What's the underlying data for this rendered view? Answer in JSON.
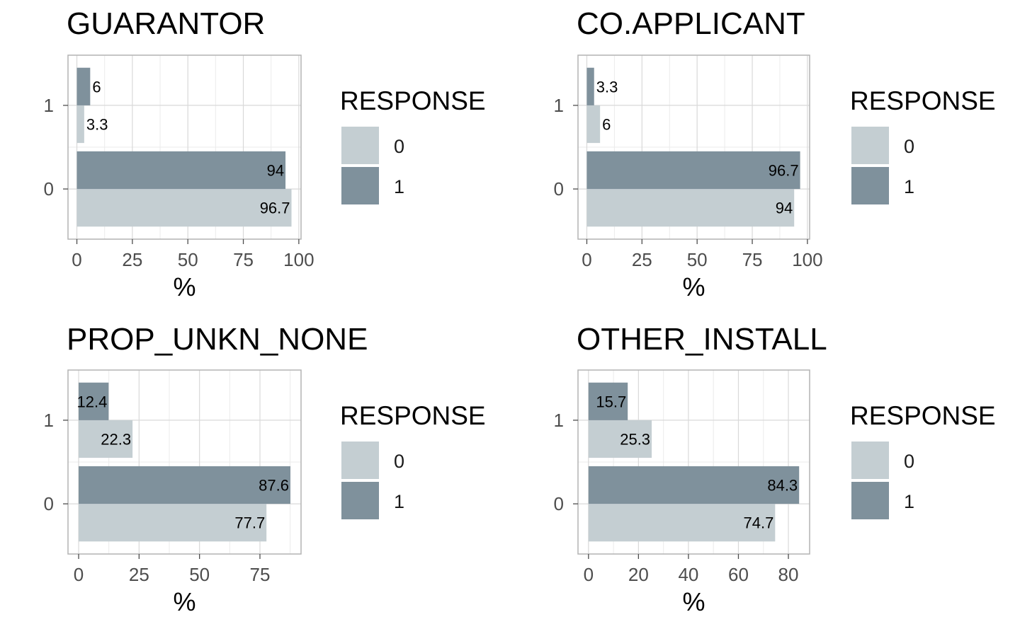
{
  "chart_data": [
    {
      "type": "bar",
      "orientation": "horizontal",
      "title": "GUARANTOR",
      "categories": [
        "0",
        "1"
      ],
      "series": [
        {
          "name": "0",
          "values": [
            96.7,
            3.3
          ]
        },
        {
          "name": "1",
          "values": [
            94,
            6
          ]
        }
      ],
      "value_labels": [
        [
          "96.7",
          "3.3"
        ],
        [
          "94",
          "6"
        ]
      ],
      "xlabel": "%",
      "ylabel": "",
      "xlim": [
        -4,
        101
      ],
      "xticks": [
        0,
        25,
        50,
        75,
        100
      ],
      "grid": true,
      "legend": {
        "title": "RESPONSE",
        "entries": [
          "0",
          "1"
        ],
        "placement": "right"
      }
    },
    {
      "type": "bar",
      "orientation": "horizontal",
      "title": "CO.APPLICANT",
      "categories": [
        "0",
        "1"
      ],
      "series": [
        {
          "name": "0",
          "values": [
            94,
            6
          ]
        },
        {
          "name": "1",
          "values": [
            96.7,
            3.3
          ]
        }
      ],
      "value_labels": [
        [
          "94",
          "6"
        ],
        [
          "96.7",
          "3.3"
        ]
      ],
      "xlabel": "%",
      "ylabel": "",
      "xlim": [
        -4,
        101
      ],
      "xticks": [
        0,
        25,
        50,
        75,
        100
      ],
      "grid": true,
      "legend": {
        "title": "RESPONSE",
        "entries": [
          "0",
          "1"
        ],
        "placement": "right"
      }
    },
    {
      "type": "bar",
      "orientation": "horizontal",
      "title": "PROP_UNKN_NONE",
      "categories": [
        "0",
        "1"
      ],
      "series": [
        {
          "name": "0",
          "values": [
            77.7,
            22.3
          ]
        },
        {
          "name": "1",
          "values": [
            87.6,
            12.4
          ]
        }
      ],
      "value_labels": [
        [
          "77.7",
          "22.3"
        ],
        [
          "87.6",
          "12.4"
        ]
      ],
      "xlabel": "%",
      "ylabel": "",
      "xlim": [
        -4.4,
        92
      ],
      "xticks": [
        0,
        25,
        50,
        75
      ],
      "grid": true,
      "legend": {
        "title": "RESPONSE",
        "entries": [
          "0",
          "1"
        ],
        "placement": "right"
      }
    },
    {
      "type": "bar",
      "orientation": "horizontal",
      "title": "OTHER_INSTALL",
      "categories": [
        "0",
        "1"
      ],
      "series": [
        {
          "name": "0",
          "values": [
            74.7,
            25.3
          ]
        },
        {
          "name": "1",
          "values": [
            84.3,
            15.7
          ]
        }
      ],
      "value_labels": [
        [
          "74.7",
          "25.3"
        ],
        [
          "84.3",
          "15.7"
        ]
      ],
      "xlabel": "%",
      "ylabel": "",
      "xlim": [
        -4.2,
        88.5
      ],
      "xticks": [
        0,
        20,
        40,
        60,
        80
      ],
      "grid": true,
      "legend": {
        "title": "RESPONSE",
        "entries": [
          "0",
          "1"
        ],
        "placement": "right"
      }
    }
  ],
  "colors": {
    "response_0": "#c4ced2",
    "response_1": "#7f919c",
    "grid_major": "#d9d9d9",
    "grid_minor": "#ebebeb",
    "panel_border": "#b3b3b3",
    "tick": "#4d4d4d"
  }
}
